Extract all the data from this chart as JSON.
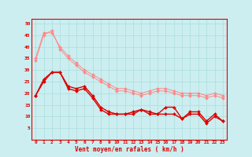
{
  "x": [
    0,
    1,
    2,
    3,
    4,
    5,
    6,
    7,
    8,
    9,
    10,
    11,
    12,
    13,
    14,
    15,
    16,
    17,
    18,
    19,
    20,
    21,
    22,
    23
  ],
  "line_pink1": [
    35,
    46,
    46,
    40,
    36,
    33,
    30,
    28,
    26,
    24,
    22,
    22,
    21,
    20,
    21,
    22,
    22,
    21,
    20,
    20,
    20,
    19,
    20,
    19
  ],
  "line_pink2": [
    34,
    45,
    47,
    39,
    35,
    32,
    29,
    27,
    25,
    23,
    21,
    21,
    20,
    19,
    20,
    21,
    21,
    20,
    19,
    19,
    19,
    18,
    19,
    18
  ],
  "line_dark1": [
    19,
    26,
    29,
    29,
    23,
    22,
    23,
    19,
    14,
    12,
    11,
    11,
    12,
    13,
    12,
    11,
    11,
    11,
    9,
    12,
    12,
    8,
    11,
    8
  ],
  "line_dark2": [
    19,
    25,
    29,
    29,
    22,
    21,
    22,
    18,
    13,
    11,
    11,
    11,
    11,
    13,
    11,
    11,
    14,
    14,
    9,
    11,
    11,
    7,
    10,
    8
  ],
  "xlim": [
    -0.5,
    23.5
  ],
  "ylim": [
    0,
    52
  ],
  "yticks": [
    5,
    10,
    15,
    20,
    25,
    30,
    35,
    40,
    45,
    50
  ],
  "xlabel": "Vent moyen/en rafales ( km/h )",
  "bg_color": "#cceef0",
  "grid_color": "#aadddd",
  "line_color_light": "#ff8888",
  "line_color_dark": "#dd0000",
  "lw_light": 0.7,
  "lw_dark": 1.0,
  "marker_size": 2.0,
  "tick_fontsize": 4.5,
  "label_fontsize": 5.5
}
